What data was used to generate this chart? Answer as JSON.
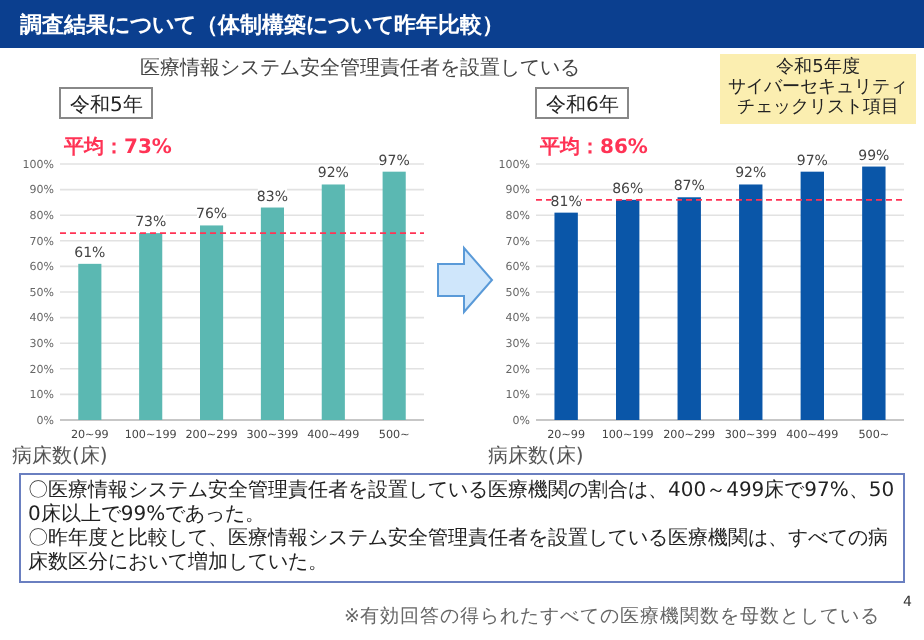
{
  "chart_data": [
    {
      "type": "bar",
      "title": "令和5年",
      "subtitle": "医療情報システム安全管理責任者を設置している",
      "xlabel": "病床数(床)",
      "categories": [
        "20~99",
        "100~199",
        "200~299",
        "300~399",
        "400~499",
        "500~"
      ],
      "series": [
        {
          "color": "#5bb8b2",
          "values": [
            61,
            73,
            76,
            83,
            92,
            97
          ],
          "value_labels": [
            "61%",
            "73%",
            "76%",
            "83%",
            "92%",
            "97%"
          ]
        }
      ],
      "ylim": [
        0,
        100
      ],
      "yticks": [
        {
          "value": 0,
          "label": "0%"
        },
        {
          "value": 10,
          "label": "10%"
        },
        {
          "value": 20,
          "label": "20%"
        },
        {
          "value": 30,
          "label": "30%"
        },
        {
          "value": 40,
          "label": "40%"
        },
        {
          "value": 50,
          "label": "50%"
        },
        {
          "value": 60,
          "label": "60%"
        },
        {
          "value": 70,
          "label": "70%"
        },
        {
          "value": 80,
          "label": "80%"
        },
        {
          "value": 90,
          "label": "90%"
        },
        {
          "value": 100,
          "label": "100%"
        }
      ],
      "grid": "y",
      "ref_lines": [
        {
          "axis": "y",
          "value": 73,
          "label": "平均：73%",
          "color": "#ff3355",
          "line_style": "dashed"
        }
      ],
      "annotations": [
        "調査結果について（体制構築について昨年比較）"
      ]
    },
    {
      "type": "bar",
      "title": "令和6年",
      "xlabel": "病床数(床)",
      "categories": [
        "20~99",
        "100~199",
        "200~299",
        "300~399",
        "400~499",
        "500~"
      ],
      "series": [
        {
          "color": "#0a56a8",
          "values": [
            81,
            86,
            87,
            92,
            97,
            99
          ],
          "value_labels": [
            "81%",
            "86%",
            "87%",
            "92%",
            "97%",
            "99%"
          ]
        }
      ],
      "ylim": [
        0,
        100
      ],
      "yticks": [
        {
          "value": 0,
          "label": "0%"
        },
        {
          "value": 10,
          "label": "10%"
        },
        {
          "value": 20,
          "label": "20%"
        },
        {
          "value": 30,
          "label": "30%"
        },
        {
          "value": 40,
          "label": "40%"
        },
        {
          "value": 50,
          "label": "50%"
        },
        {
          "value": 60,
          "label": "60%"
        },
        {
          "value": 70,
          "label": "70%"
        },
        {
          "value": 80,
          "label": "80%"
        },
        {
          "value": 90,
          "label": "90%"
        },
        {
          "value": 100,
          "label": "100%"
        }
      ],
      "grid": "y",
      "ref_lines": [
        {
          "axis": "y",
          "value": 86,
          "label": "平均：86%",
          "color": "#ff3355",
          "line_style": "dashed"
        }
      ],
      "annotations": [
        "令和5年度",
        "サイバーセキュリティ",
        "チェックリスト項目",
        "〇医療情報システム安全管理責任者を設置している医療機関の割合は、400～499床で97%、500床以上で99%であった。",
        "〇昨年度と比較して、医療情報システム安全管理責任者を設置している医療機関は、すべての病床数区分において増加していた。",
        "※有効回答の得られたすべての医療機関数を母数としている",
        "4"
      ]
    }
  ]
}
